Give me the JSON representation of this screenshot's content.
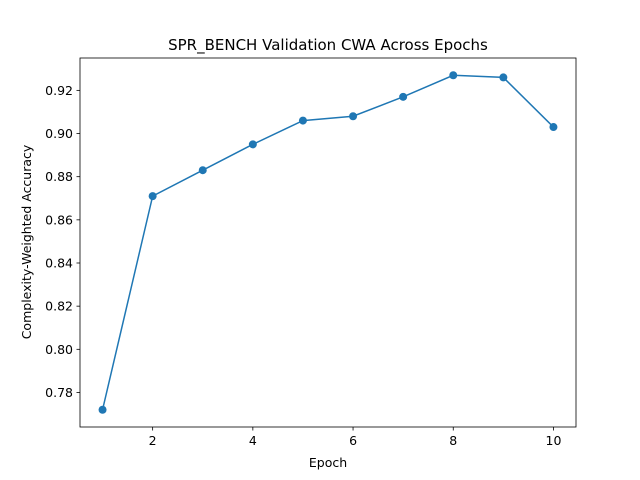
{
  "chart_data": {
    "type": "line",
    "title": "SPR_BENCH Validation CWA Across Epochs",
    "xlabel": "Epoch",
    "ylabel": "Complexity-Weighted Accuracy",
    "x": [
      1,
      2,
      3,
      4,
      5,
      6,
      7,
      8,
      9,
      10
    ],
    "series": [
      {
        "values": [
          0.772,
          0.871,
          0.883,
          0.895,
          0.906,
          0.908,
          0.917,
          0.927,
          0.926,
          0.903
        ],
        "color": "#1f77b4",
        "marker": "circle"
      }
    ],
    "xlim": [
      0.55,
      10.45
    ],
    "ylim": [
      0.764,
      0.935
    ],
    "xticks": [
      2,
      4,
      6,
      8,
      10
    ],
    "xtick_labels": [
      "2",
      "4",
      "6",
      "8",
      "10"
    ],
    "yticks": [
      0.78,
      0.8,
      0.82,
      0.84,
      0.86,
      0.88,
      0.9,
      0.92
    ],
    "ytick_labels": [
      "0.78",
      "0.80",
      "0.82",
      "0.84",
      "0.86",
      "0.88",
      "0.90",
      "0.92"
    ],
    "grid": false,
    "legend": "none"
  }
}
